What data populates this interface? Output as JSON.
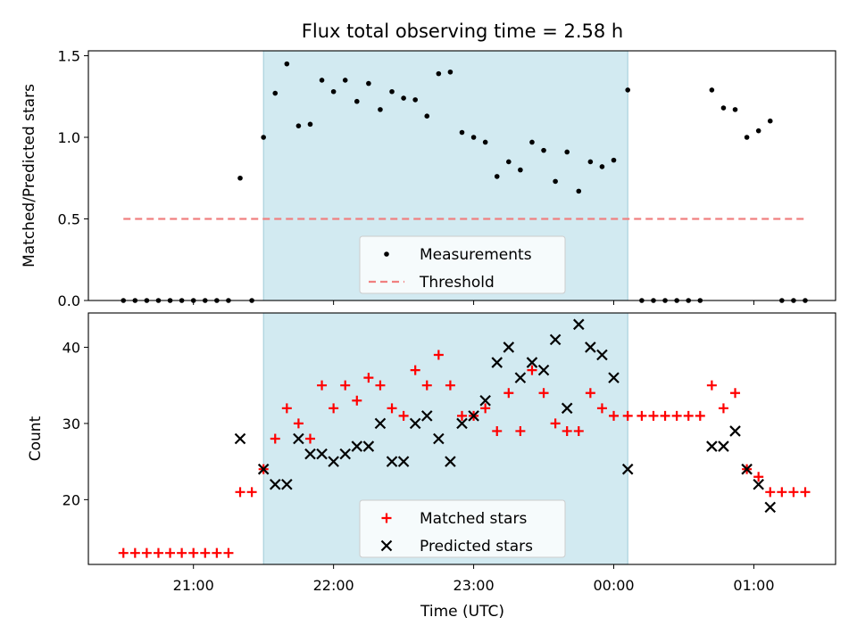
{
  "title": "Flux total observing time = 2.58 h",
  "xlabel": "Time (UTC)",
  "x_ticks": [
    "21:00",
    "22:00",
    "23:00",
    "00:00",
    "01:00"
  ],
  "shaded_region": {
    "start": "21:30",
    "end": "00:06",
    "color": "#add8e6"
  },
  "chart_data": [
    {
      "type": "scatter",
      "panel": "top",
      "ylabel": "Matched/Predicted stars",
      "ylim": [
        0,
        1.53
      ],
      "y_ticks": [
        "0.0",
        "0.5",
        "1.0",
        "1.5"
      ],
      "legend_position": "lower-center",
      "series": [
        {
          "name": "Measurements",
          "color": "#000000",
          "marker": "dot",
          "points": [
            [
              "20:30",
              0
            ],
            [
              "20:35",
              0
            ],
            [
              "20:40",
              0
            ],
            [
              "20:45",
              0
            ],
            [
              "20:50",
              0
            ],
            [
              "20:55",
              0
            ],
            [
              "21:00",
              0
            ],
            [
              "21:05",
              0
            ],
            [
              "21:10",
              0
            ],
            [
              "21:15",
              0
            ],
            [
              "21:20",
              0.75
            ],
            [
              "21:25",
              0
            ],
            [
              "21:30",
              1.0
            ],
            [
              "21:35",
              1.27
            ],
            [
              "21:40",
              1.45
            ],
            [
              "21:45",
              1.07
            ],
            [
              "21:50",
              1.08
            ],
            [
              "21:55",
              1.35
            ],
            [
              "22:00",
              1.28
            ],
            [
              "22:05",
              1.35
            ],
            [
              "22:10",
              1.22
            ],
            [
              "22:15",
              1.33
            ],
            [
              "22:20",
              1.17
            ],
            [
              "22:25",
              1.28
            ],
            [
              "22:30",
              1.24
            ],
            [
              "22:35",
              1.23
            ],
            [
              "22:40",
              1.13
            ],
            [
              "22:45",
              1.39
            ],
            [
              "22:50",
              1.4
            ],
            [
              "22:55",
              1.03
            ],
            [
              "23:00",
              1.0
            ],
            [
              "23:05",
              0.97
            ],
            [
              "23:10",
              0.76
            ],
            [
              "23:15",
              0.85
            ],
            [
              "23:20",
              0.8
            ],
            [
              "23:25",
              0.97
            ],
            [
              "23:30",
              0.92
            ],
            [
              "23:35",
              0.73
            ],
            [
              "23:40",
              0.91
            ],
            [
              "23:45",
              0.67
            ],
            [
              "23:50",
              0.85
            ],
            [
              "23:55",
              0.82
            ],
            [
              "00:00",
              0.86
            ],
            [
              "00:06",
              1.29
            ],
            [
              "00:12",
              0
            ],
            [
              "00:17",
              0
            ],
            [
              "00:22",
              0
            ],
            [
              "00:27",
              0
            ],
            [
              "00:32",
              0
            ],
            [
              "00:37",
              0
            ],
            [
              "00:42",
              1.29
            ],
            [
              "00:47",
              1.18
            ],
            [
              "00:52",
              1.17
            ],
            [
              "00:57",
              1.0
            ],
            [
              "01:02",
              1.04
            ],
            [
              "01:07",
              1.1
            ],
            [
              "01:12",
              0
            ],
            [
              "01:17",
              0
            ],
            [
              "01:22",
              0
            ]
          ]
        },
        {
          "name": "Threshold",
          "color": "#f08080",
          "style": "dashed",
          "points": [
            [
              "20:30",
              0.5
            ],
            [
              "01:22",
              0.5
            ]
          ]
        }
      ]
    },
    {
      "type": "scatter",
      "panel": "bottom",
      "ylabel": "Count",
      "ylim": [
        11.5,
        44.5
      ],
      "y_ticks": [
        "20",
        "30",
        "40"
      ],
      "legend_position": "lower-center",
      "series": [
        {
          "name": "Matched stars",
          "color": "#ff0000",
          "marker": "plus",
          "points": [
            [
              "20:30",
              13
            ],
            [
              "20:35",
              13
            ],
            [
              "20:40",
              13
            ],
            [
              "20:45",
              13
            ],
            [
              "20:50",
              13
            ],
            [
              "20:55",
              13
            ],
            [
              "21:00",
              13
            ],
            [
              "21:05",
              13
            ],
            [
              "21:10",
              13
            ],
            [
              "21:15",
              13
            ],
            [
              "21:20",
              21
            ],
            [
              "21:25",
              21
            ],
            [
              "21:30",
              24
            ],
            [
              "21:35",
              28
            ],
            [
              "21:40",
              32
            ],
            [
              "21:45",
              30
            ],
            [
              "21:50",
              28
            ],
            [
              "21:55",
              35
            ],
            [
              "22:00",
              32
            ],
            [
              "22:05",
              35
            ],
            [
              "22:10",
              33
            ],
            [
              "22:15",
              36
            ],
            [
              "22:20",
              35
            ],
            [
              "22:25",
              32
            ],
            [
              "22:30",
              31
            ],
            [
              "22:35",
              37
            ],
            [
              "22:40",
              35
            ],
            [
              "22:45",
              39
            ],
            [
              "22:50",
              35
            ],
            [
              "22:55",
              31
            ],
            [
              "23:00",
              31
            ],
            [
              "23:05",
              32
            ],
            [
              "23:10",
              29
            ],
            [
              "23:15",
              34
            ],
            [
              "23:20",
              29
            ],
            [
              "23:25",
              37
            ],
            [
              "23:30",
              34
            ],
            [
              "23:35",
              30
            ],
            [
              "23:40",
              29
            ],
            [
              "23:45",
              29
            ],
            [
              "23:50",
              34
            ],
            [
              "23:55",
              32
            ],
            [
              "00:00",
              31
            ],
            [
              "00:06",
              31
            ],
            [
              "00:12",
              31
            ],
            [
              "00:17",
              31
            ],
            [
              "00:22",
              31
            ],
            [
              "00:27",
              31
            ],
            [
              "00:32",
              31
            ],
            [
              "00:37",
              31
            ],
            [
              "00:42",
              35
            ],
            [
              "00:47",
              32
            ],
            [
              "00:52",
              34
            ],
            [
              "00:57",
              24
            ],
            [
              "01:02",
              23
            ],
            [
              "01:07",
              21
            ],
            [
              "01:12",
              21
            ],
            [
              "01:17",
              21
            ],
            [
              "01:22",
              21
            ]
          ]
        },
        {
          "name": "Predicted stars",
          "color": "#000000",
          "marker": "x",
          "points": [
            [
              "21:20",
              28
            ],
            [
              "21:30",
              24
            ],
            [
              "21:35",
              22
            ],
            [
              "21:40",
              22
            ],
            [
              "21:45",
              28
            ],
            [
              "21:50",
              26
            ],
            [
              "21:55",
              26
            ],
            [
              "22:00",
              25
            ],
            [
              "22:05",
              26
            ],
            [
              "22:10",
              27
            ],
            [
              "22:15",
              27
            ],
            [
              "22:20",
              30
            ],
            [
              "22:25",
              25
            ],
            [
              "22:30",
              25
            ],
            [
              "22:35",
              30
            ],
            [
              "22:40",
              31
            ],
            [
              "22:45",
              28
            ],
            [
              "22:50",
              25
            ],
            [
              "22:55",
              30
            ],
            [
              "23:00",
              31
            ],
            [
              "23:05",
              33
            ],
            [
              "23:10",
              38
            ],
            [
              "23:15",
              40
            ],
            [
              "23:20",
              36
            ],
            [
              "23:25",
              38
            ],
            [
              "23:30",
              37
            ],
            [
              "23:35",
              41
            ],
            [
              "23:40",
              32
            ],
            [
              "23:45",
              43
            ],
            [
              "23:50",
              40
            ],
            [
              "23:55",
              39
            ],
            [
              "00:00",
              36
            ],
            [
              "00:06",
              24
            ],
            [
              "00:42",
              27
            ],
            [
              "00:47",
              27
            ],
            [
              "00:52",
              29
            ],
            [
              "00:57",
              24
            ],
            [
              "01:02",
              22
            ],
            [
              "01:07",
              19
            ]
          ]
        }
      ]
    }
  ]
}
